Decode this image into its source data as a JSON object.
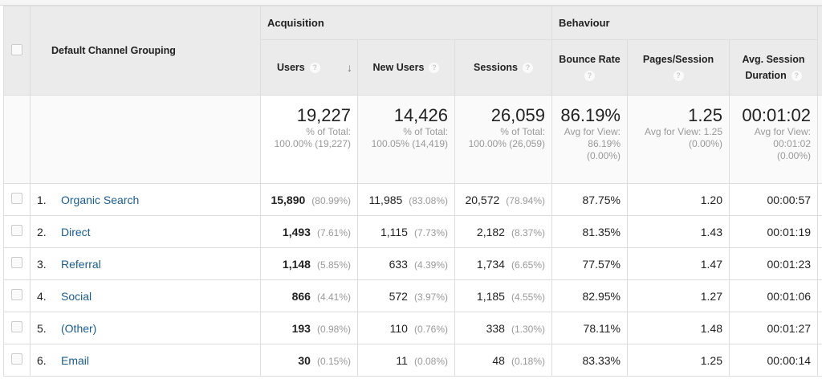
{
  "header": {
    "dimension": "Default Channel Grouping",
    "groups": {
      "acquisition": "Acquisition",
      "behaviour": "Behaviour"
    },
    "columns": {
      "users": "Users",
      "new_users": "New Users",
      "sessions": "Sessions",
      "bounce_rate": "Bounce Rate",
      "pages_session": "Pages/Session",
      "avg_duration_1": "Avg. Session",
      "avg_duration_2": "Duration"
    },
    "help": "?",
    "sort_icon": "arrow-down-icon"
  },
  "totals": {
    "users": {
      "value": "19,227",
      "l1": "% of Total:",
      "l2": "100.00% (19,227)"
    },
    "new_users": {
      "value": "14,426",
      "l1": "% of Total:",
      "l2": "100.05% (14,419)"
    },
    "sessions": {
      "value": "26,059",
      "l1": "% of Total:",
      "l2": "100.00% (26,059)"
    },
    "bounce_rate": {
      "value": "86.19%",
      "l1": "Avg for View:",
      "l2": "86.19%",
      "l3": "(0.00%)"
    },
    "pages_session": {
      "value": "1.25",
      "l1": "Avg for View: 1.25",
      "l2": "(0.00%)"
    },
    "avg_duration": {
      "value": "00:01:02",
      "l1": "Avg for View:",
      "l2": "00:01:02",
      "l3": "(0.00%)"
    }
  },
  "rows": [
    {
      "idx": "1.",
      "name": "Organic Search",
      "users": "15,890",
      "users_pct": "(80.99%)",
      "new_users": "11,985",
      "new_users_pct": "(83.08%)",
      "sessions": "20,572",
      "sessions_pct": "(78.94%)",
      "bounce": "87.75%",
      "pages": "1.20",
      "duration": "00:00:57"
    },
    {
      "idx": "2.",
      "name": "Direct",
      "users": "1,493",
      "users_pct": "(7.61%)",
      "new_users": "1,115",
      "new_users_pct": "(7.73%)",
      "sessions": "2,182",
      "sessions_pct": "(8.37%)",
      "bounce": "81.35%",
      "pages": "1.43",
      "duration": "00:01:19"
    },
    {
      "idx": "3.",
      "name": "Referral",
      "users": "1,148",
      "users_pct": "(5.85%)",
      "new_users": "633",
      "new_users_pct": "(4.39%)",
      "sessions": "1,734",
      "sessions_pct": "(6.65%)",
      "bounce": "77.57%",
      "pages": "1.47",
      "duration": "00:01:23"
    },
    {
      "idx": "4.",
      "name": "Social",
      "users": "866",
      "users_pct": "(4.41%)",
      "new_users": "572",
      "new_users_pct": "(3.97%)",
      "sessions": "1,185",
      "sessions_pct": "(4.55%)",
      "bounce": "82.95%",
      "pages": "1.27",
      "duration": "00:01:06"
    },
    {
      "idx": "5.",
      "name": "(Other)",
      "users": "193",
      "users_pct": "(0.98%)",
      "new_users": "110",
      "new_users_pct": "(0.76%)",
      "sessions": "338",
      "sessions_pct": "(1.30%)",
      "bounce": "78.11%",
      "pages": "1.48",
      "duration": "00:01:27"
    },
    {
      "idx": "6.",
      "name": "Email",
      "users": "30",
      "users_pct": "(0.15%)",
      "new_users": "11",
      "new_users_pct": "(0.08%)",
      "sessions": "48",
      "sessions_pct": "(0.18%)",
      "bounce": "83.33%",
      "pages": "1.25",
      "duration": "00:00:14"
    }
  ]
}
